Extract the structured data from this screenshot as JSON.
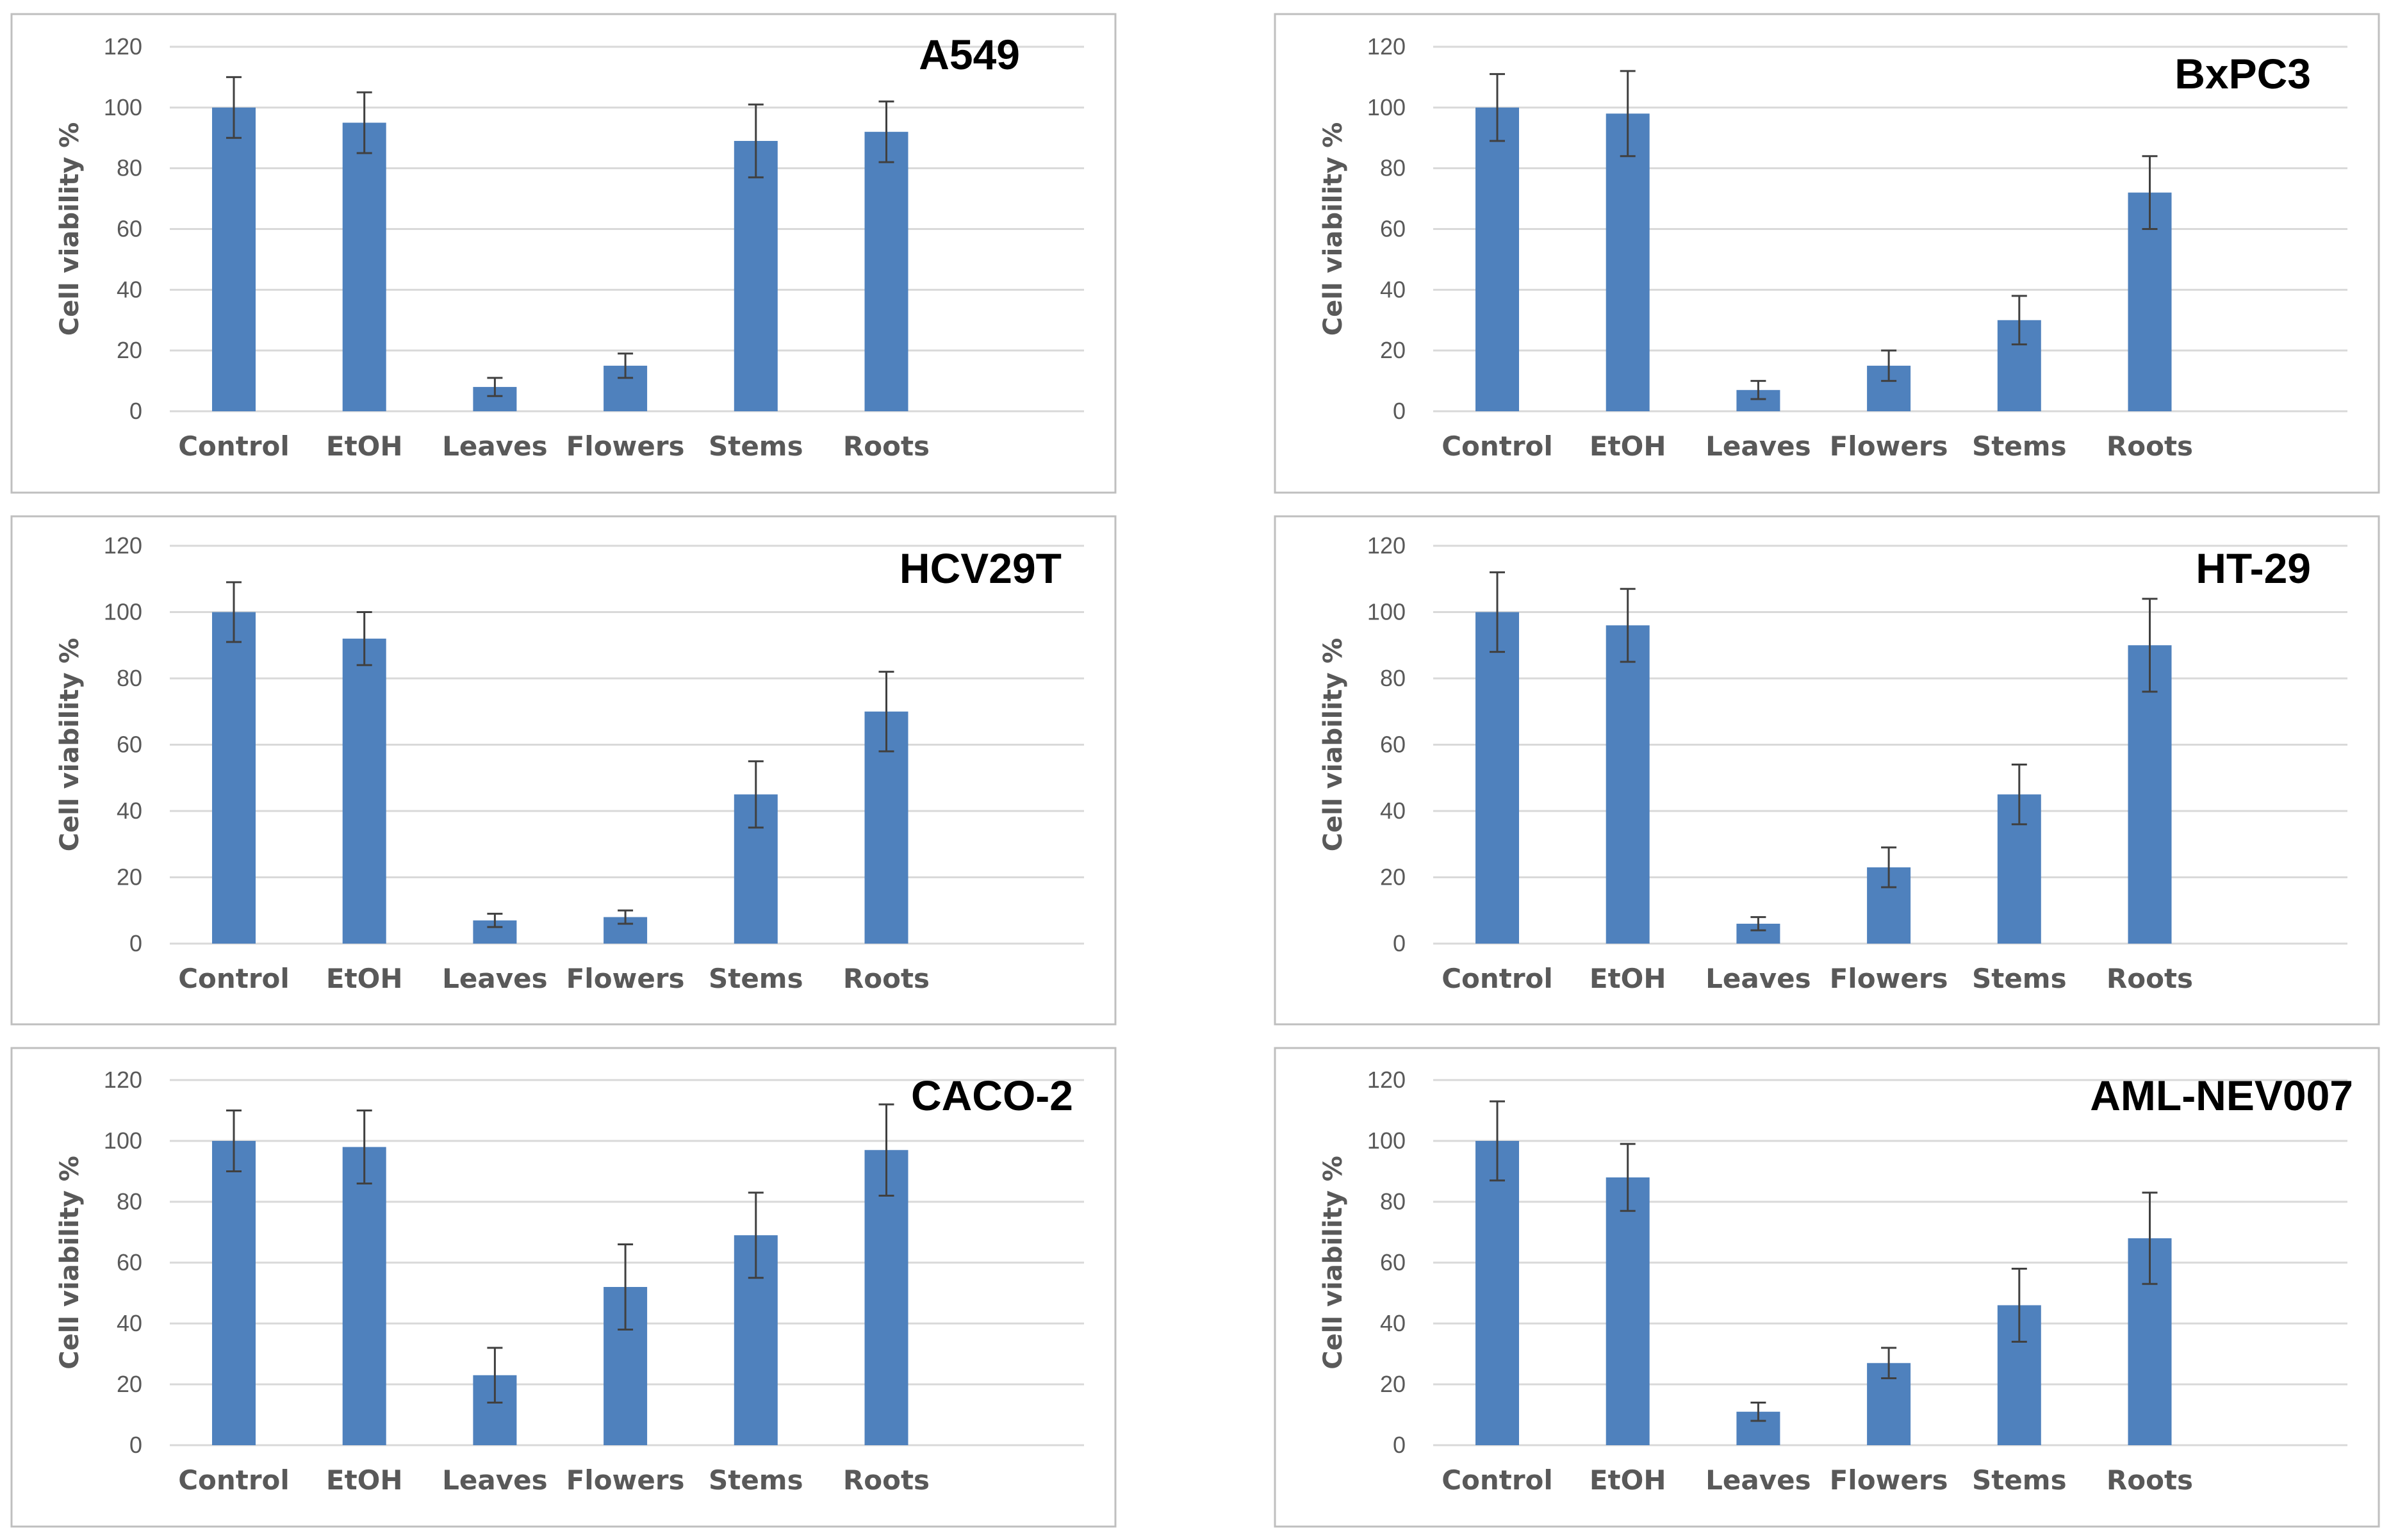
{
  "chart_data": [
    {
      "type": "bar",
      "title": "A549",
      "ylabel": "Cell viability %",
      "ylim": [
        0,
        120
      ],
      "yticks": [
        0,
        20,
        40,
        60,
        80,
        100,
        120
      ],
      "categories": [
        "Control",
        "EtOH",
        "Leaves",
        "Flowers",
        "Stems",
        "Roots"
      ],
      "values": [
        100,
        95,
        8,
        15,
        89,
        92
      ],
      "errors": [
        10,
        10,
        3,
        4,
        12,
        10
      ],
      "grid": true,
      "bar_color": "#4f81bd"
    },
    {
      "type": "bar",
      "title": "BxPC3",
      "ylabel": "Cell viability %",
      "ylim": [
        0,
        120
      ],
      "yticks": [
        0,
        20,
        40,
        60,
        80,
        100,
        120
      ],
      "categories": [
        "Control",
        "EtOH",
        "Leaves",
        "Flowers",
        "Stems",
        "Roots"
      ],
      "values": [
        100,
        98,
        7,
        15,
        30,
        72
      ],
      "errors": [
        11,
        14,
        3,
        5,
        8,
        12
      ],
      "grid": true,
      "bar_color": "#4f81bd"
    },
    {
      "type": "bar",
      "title": "HCV29T",
      "ylabel": "Cell viability %",
      "ylim": [
        0,
        120
      ],
      "yticks": [
        0,
        20,
        40,
        60,
        80,
        100,
        120
      ],
      "categories": [
        "Control",
        "EtOH",
        "Leaves",
        "Flowers",
        "Stems",
        "Roots"
      ],
      "values": [
        100,
        92,
        7,
        8,
        45,
        70
      ],
      "errors": [
        9,
        8,
        2,
        2,
        10,
        12
      ],
      "grid": true,
      "bar_color": "#4f81bd"
    },
    {
      "type": "bar",
      "title": "HT-29",
      "ylabel": "Cell viability %",
      "ylim": [
        0,
        120
      ],
      "yticks": [
        0,
        20,
        40,
        60,
        80,
        100,
        120
      ],
      "categories": [
        "Control",
        "EtOH",
        "Leaves",
        "Flowers",
        "Stems",
        "Roots"
      ],
      "values": [
        100,
        96,
        6,
        23,
        45,
        90
      ],
      "errors": [
        12,
        11,
        2,
        6,
        9,
        14
      ],
      "grid": true,
      "bar_color": "#4f81bd"
    },
    {
      "type": "bar",
      "title": "CACO-2",
      "ylabel": "Cell viability %",
      "ylim": [
        0,
        120
      ],
      "yticks": [
        0,
        20,
        40,
        60,
        80,
        100,
        120
      ],
      "categories": [
        "Control",
        "EtOH",
        "Leaves",
        "Flowers",
        "Stems",
        "Roots"
      ],
      "values": [
        100,
        98,
        23,
        52,
        69,
        97
      ],
      "errors": [
        10,
        12,
        9,
        14,
        14,
        15
      ],
      "grid": true,
      "bar_color": "#4f81bd"
    },
    {
      "type": "bar",
      "title": "AML-NEV007",
      "ylabel": "Cell viability %",
      "ylim": [
        0,
        120
      ],
      "yticks": [
        0,
        20,
        40,
        60,
        80,
        100,
        120
      ],
      "categories": [
        "Control",
        "EtOH",
        "Leaves",
        "Flowers",
        "Stems",
        "Roots"
      ],
      "values": [
        100,
        88,
        11,
        27,
        46,
        68
      ],
      "errors": [
        13,
        11,
        3,
        5,
        12,
        15
      ],
      "grid": true,
      "bar_color": "#4f81bd"
    }
  ]
}
